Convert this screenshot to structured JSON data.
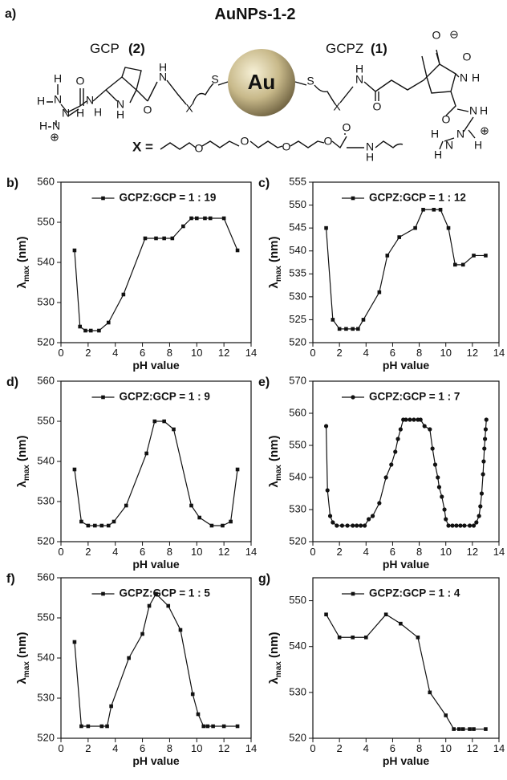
{
  "diagram": {
    "panel": "a)",
    "title": "AuNPs-1-2",
    "left_label": "GCP",
    "left_num": "(2)",
    "right_label": "GCPZ",
    "right_num": "(1)",
    "core": "Au",
    "linker_label": "X =",
    "atoms": [
      "H",
      "N",
      "H",
      "O",
      "N",
      "H",
      "N",
      "H",
      "H",
      "N",
      "⊕",
      "N",
      "H",
      "O",
      "N",
      "H",
      "X",
      "S",
      "S",
      "X",
      "H",
      "N",
      "O",
      "O",
      "O",
      "⊖",
      "N",
      "H",
      "O",
      "N",
      "H",
      "N",
      "H",
      "H",
      "N",
      "H",
      "⊕",
      "O",
      "O",
      "O",
      "O",
      "O",
      "N",
      "H"
    ]
  },
  "chart_data": [
    {
      "type": "line",
      "panel": "b)",
      "marker": "square",
      "legend": "top",
      "xlabel": "pH value",
      "ylabel": "λ",
      "ylabel_sub": "max",
      "ylabel_unit": " (nm)",
      "xlim": [
        0,
        14
      ],
      "xticks": [
        0,
        2,
        4,
        6,
        8,
        10,
        12,
        14
      ],
      "ylim": [
        520,
        560
      ],
      "yticks": [
        520,
        530,
        540,
        550,
        560
      ],
      "x": [
        1,
        1.4,
        1.8,
        2.2,
        2.8,
        3.5,
        4.6,
        6.2,
        7,
        7.6,
        8.2,
        9,
        9.6,
        10,
        10.6,
        11,
        12,
        13
      ],
      "series": [
        {
          "name": "GCPZ:GCP = 1 : 19",
          "color": "#111111",
          "values": [
            543,
            524,
            523,
            523,
            523,
            525,
            532,
            546,
            546,
            546,
            546,
            549,
            551,
            551,
            551,
            551,
            551,
            543
          ]
        }
      ]
    },
    {
      "type": "line",
      "panel": "c)",
      "marker": "square",
      "legend": "top",
      "xlabel": "pH value",
      "ylabel": "λ",
      "ylabel_sub": "max",
      "ylabel_unit": " (nm)",
      "xlim": [
        0,
        14
      ],
      "xticks": [
        0,
        2,
        4,
        6,
        8,
        10,
        12,
        14
      ],
      "ylim": [
        520,
        555
      ],
      "yticks": [
        520,
        525,
        530,
        535,
        540,
        545,
        550,
        555
      ],
      "x": [
        1,
        1.5,
        2,
        2.5,
        3,
        3.4,
        3.8,
        5,
        5.6,
        6.5,
        7.7,
        8.3,
        9.1,
        9.6,
        10.2,
        10.7,
        11.3,
        12.1,
        13
      ],
      "series": [
        {
          "name": "GCPZ:GCP = 1 : 12",
          "color": "#111111",
          "values": [
            545,
            525,
            523,
            523,
            523,
            523,
            525,
            531,
            539,
            543,
            545,
            549,
            549,
            549,
            545,
            537,
            537,
            539,
            539
          ]
        }
      ]
    },
    {
      "type": "line",
      "panel": "d)",
      "marker": "square",
      "legend": "top",
      "xlabel": "pH value",
      "ylabel": "λ",
      "ylabel_sub": "max",
      "ylabel_unit": " (nm)",
      "xlim": [
        0,
        14
      ],
      "xticks": [
        0,
        2,
        4,
        6,
        8,
        10,
        12,
        14
      ],
      "ylim": [
        520,
        560
      ],
      "yticks": [
        520,
        530,
        540,
        550,
        560
      ],
      "x": [
        1,
        1.5,
        2,
        2.5,
        3,
        3.5,
        3.9,
        4.8,
        6.3,
        6.9,
        7.6,
        8.3,
        9.6,
        10.2,
        11.1,
        11.9,
        12.5,
        13
      ],
      "series": [
        {
          "name": "GCPZ:GCP = 1 : 9",
          "color": "#111111",
          "values": [
            538,
            525,
            524,
            524,
            524,
            524,
            525,
            529,
            542,
            550,
            550,
            548,
            529,
            526,
            524,
            524,
            525,
            538
          ]
        }
      ]
    },
    {
      "type": "line",
      "panel": "e)",
      "marker": "circle",
      "legend": "top",
      "xlabel": "pH value",
      "ylabel": "λ",
      "ylabel_sub": "max",
      "ylabel_unit": " (nm)",
      "xlim": [
        0,
        14
      ],
      "xticks": [
        0,
        2,
        4,
        6,
        8,
        10,
        12,
        14
      ],
      "ylim": [
        520,
        570
      ],
      "yticks": [
        520,
        530,
        540,
        550,
        560,
        570
      ],
      "x": [
        1,
        1.1,
        1.3,
        1.5,
        1.8,
        2.2,
        2.6,
        3,
        3.3,
        3.6,
        3.9,
        4.2,
        4.5,
        5,
        5.5,
        5.9,
        6.2,
        6.4,
        6.6,
        6.8,
        7,
        7.3,
        7.6,
        7.9,
        8.1,
        8.4,
        8.8,
        9,
        9.2,
        9.4,
        9.5,
        9.7,
        9.9,
        10,
        10.2,
        10.5,
        10.8,
        11.1,
        11.4,
        11.8,
        12.1,
        12.3,
        12.5,
        12.6,
        12.7,
        12.8,
        12.85,
        12.9,
        12.95,
        13,
        13.05
      ],
      "series": [
        {
          "name": "GCPZ:GCP = 1 : 7",
          "color": "#111111",
          "values": [
            556,
            536,
            528,
            526,
            525,
            525,
            525,
            525,
            525,
            525,
            525,
            527,
            528,
            532,
            540,
            544,
            548,
            552,
            555,
            558,
            558,
            558,
            558,
            558,
            558,
            556,
            555,
            549,
            544,
            540,
            537,
            534,
            530,
            527,
            525,
            525,
            525,
            525,
            525,
            525,
            525,
            526,
            528,
            531,
            535,
            541,
            545,
            549,
            552,
            555,
            558
          ]
        }
      ]
    },
    {
      "type": "line",
      "panel": "f)",
      "marker": "square",
      "legend": "top",
      "xlabel": "pH value",
      "ylabel": "λ",
      "ylabel_sub": "max",
      "ylabel_unit": " (nm)",
      "xlim": [
        0,
        14
      ],
      "xticks": [
        0,
        2,
        4,
        6,
        8,
        10,
        12,
        14
      ],
      "ylim": [
        520,
        560
      ],
      "yticks": [
        520,
        530,
        540,
        550,
        560
      ],
      "x": [
        1,
        1.5,
        2,
        3,
        3.4,
        3.7,
        5,
        6,
        6.5,
        7,
        7.9,
        8.8,
        9.7,
        10.1,
        10.5,
        10.8,
        11.2,
        12,
        13
      ],
      "series": [
        {
          "name": "GCPZ:GCP = 1 : 5",
          "color": "#111111",
          "values": [
            544,
            523,
            523,
            523,
            523,
            528,
            540,
            546,
            553,
            556,
            553,
            547,
            531,
            526,
            523,
            523,
            523,
            523,
            523
          ]
        }
      ]
    },
    {
      "type": "line",
      "panel": "g)",
      "marker": "square",
      "legend": "top",
      "xlabel": "pH value",
      "ylabel": "λ",
      "ylabel_sub": "max",
      "ylabel_unit": " (nm)",
      "xlim": [
        0,
        14
      ],
      "xticks": [
        0,
        2,
        4,
        6,
        8,
        10,
        12,
        14
      ],
      "ylim": [
        520,
        555
      ],
      "yticks": [
        520,
        530,
        540,
        550
      ],
      "x": [
        1,
        2,
        3,
        4,
        5.5,
        6.6,
        7.9,
        8.8,
        10,
        10.6,
        11,
        11.3,
        11.8,
        12.1,
        13
      ],
      "series": [
        {
          "name": "GCPZ:GCP = 1 : 4",
          "color": "#111111",
          "values": [
            547,
            542,
            542,
            542,
            547,
            545,
            542,
            530,
            525,
            522,
            522,
            522,
            522,
            522,
            522
          ]
        }
      ]
    }
  ]
}
